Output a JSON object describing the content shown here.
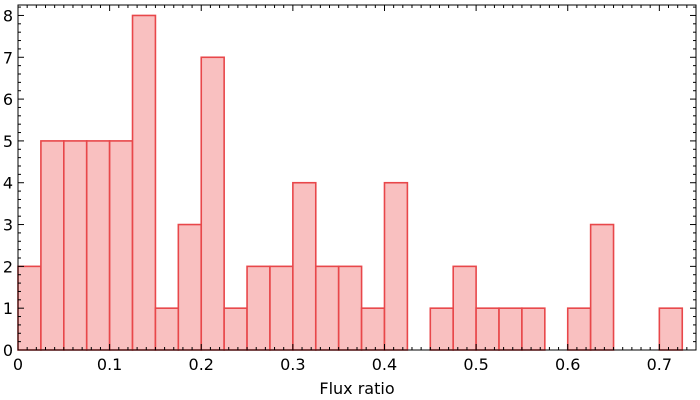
{
  "chart_data": {
    "type": "bar",
    "subtype": "histogram",
    "title": "",
    "xlabel": "Flux ratio",
    "ylabel": "",
    "bin_width": 0.025,
    "bins": [
      {
        "x0": 0.0,
        "count": 2
      },
      {
        "x0": 0.025,
        "count": 5
      },
      {
        "x0": 0.05,
        "count": 5
      },
      {
        "x0": 0.075,
        "count": 5
      },
      {
        "x0": 0.1,
        "count": 5
      },
      {
        "x0": 0.125,
        "count": 8
      },
      {
        "x0": 0.15,
        "count": 1
      },
      {
        "x0": 0.175,
        "count": 3
      },
      {
        "x0": 0.2,
        "count": 7
      },
      {
        "x0": 0.225,
        "count": 1
      },
      {
        "x0": 0.25,
        "count": 2
      },
      {
        "x0": 0.275,
        "count": 2
      },
      {
        "x0": 0.3,
        "count": 4
      },
      {
        "x0": 0.325,
        "count": 2
      },
      {
        "x0": 0.35,
        "count": 2
      },
      {
        "x0": 0.375,
        "count": 1
      },
      {
        "x0": 0.4,
        "count": 4
      },
      {
        "x0": 0.45,
        "count": 1
      },
      {
        "x0": 0.475,
        "count": 2
      },
      {
        "x0": 0.5,
        "count": 1
      },
      {
        "x0": 0.525,
        "count": 1
      },
      {
        "x0": 0.55,
        "count": 1
      },
      {
        "x0": 0.6,
        "count": 1
      },
      {
        "x0": 0.625,
        "count": 3
      },
      {
        "x0": 0.7,
        "count": 1
      }
    ],
    "xlim": [
      0,
      0.74
    ],
    "ylim": [
      0,
      8.25
    ],
    "xticks": [
      0,
      0.1,
      0.2,
      0.3,
      0.4,
      0.5,
      0.6,
      0.7
    ],
    "xtick_labels": [
      "0",
      "0.1",
      "0.2",
      "0.3",
      "0.4",
      "0.5",
      "0.6",
      "0.7"
    ],
    "yticks": [
      0,
      1,
      2,
      3,
      4,
      5,
      6,
      7,
      8
    ],
    "ytick_labels": [
      "0",
      "1",
      "2",
      "3",
      "4",
      "5",
      "6",
      "7",
      "8"
    ],
    "grid": false,
    "legend": "none",
    "colors": {
      "bar_fill": "#f9c0c0",
      "bar_edge": "#e8474a",
      "axis": "#000000"
    }
  }
}
